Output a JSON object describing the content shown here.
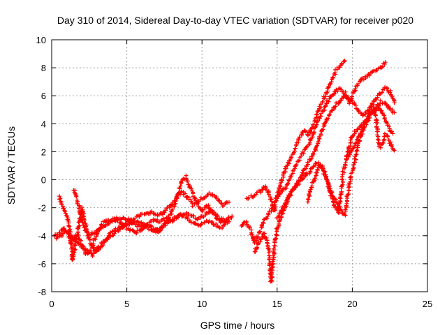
{
  "chart_data": {
    "type": "scatter",
    "title": "Day 310 of 2014, Sidereal Day-to-day VTEC variation (SDTVAR) for receiver p020",
    "xlabel": "GPS time / hours",
    "ylabel": "SDTVAR / TECUs",
    "xlim": [
      0,
      25
    ],
    "ylim": [
      -8,
      10
    ],
    "xticks": [
      "0",
      "5",
      "10",
      "15",
      "20",
      "25"
    ],
    "yticks": [
      "-8",
      "-6",
      "-4",
      "-2",
      "0",
      "2",
      "4",
      "6",
      "8",
      "10"
    ],
    "grid": true,
    "marker": "+",
    "series_color": "#ff0000",
    "series": [
      {
        "x": [
          0.2,
          0.5,
          0.8,
          1.1,
          1.3,
          1.5,
          1.7,
          2.0,
          2.3,
          2.6,
          2.9,
          3.2,
          3.6,
          4.0,
          4.4,
          4.8,
          5.2,
          5.6,
          6.0,
          6.4,
          6.8,
          7.2,
          7.6,
          8.0,
          8.4,
          8.7,
          9.0,
          9.4,
          9.8,
          10.2,
          10.6,
          11.0,
          11.4,
          11.8
        ],
        "y": [
          -4.0,
          -3.8,
          -3.5,
          -3.8,
          -4.5,
          -4.2,
          -3.9,
          -4.6,
          -5.3,
          -5.0,
          -4.2,
          -3.6,
          -3.2,
          -3.0,
          -2.8,
          -2.7,
          -2.9,
          -3.2,
          -3.4,
          -3.1,
          -2.9,
          -3.0,
          -2.8,
          -2.9,
          -2.6,
          -2.5,
          -2.4,
          -2.6,
          -2.8,
          -2.5,
          -2.3,
          -2.6,
          -2.9,
          -3.0
        ]
      },
      {
        "x": [
          0.5,
          0.7,
          1.0,
          1.2,
          1.4,
          1.6,
          1.8,
          2.0,
          2.2,
          2.5,
          2.8,
          3.1,
          3.5,
          3.9,
          4.3,
          4.7,
          5.1,
          5.5,
          5.9,
          6.3,
          6.7,
          7.1,
          7.5,
          7.9,
          8.3,
          8.6,
          8.9,
          9.2,
          9.6,
          10.0,
          10.4,
          10.8,
          11.2,
          11.6,
          12.0
        ],
        "y": [
          -1.2,
          -1.8,
          -2.5,
          -3.5,
          -5.8,
          -4.5,
          -3.2,
          -2.0,
          -3.0,
          -4.0,
          -3.8,
          -3.5,
          -3.0,
          -2.9,
          -2.8,
          -3.2,
          -3.5,
          -3.8,
          -3.6,
          -3.2,
          -3.4,
          -3.8,
          -3.2,
          -2.5,
          -1.5,
          -0.2,
          0.2,
          -0.5,
          -1.5,
          -2.2,
          -1.8,
          -2.5,
          -3.0,
          -2.8,
          -2.6
        ]
      },
      {
        "x": [
          1.5,
          1.7,
          1.9,
          2.1,
          2.4,
          2.7,
          3.0,
          3.4,
          3.8,
          4.2,
          4.6,
          5.0,
          5.4,
          5.8,
          6.2,
          6.6,
          7.0,
          7.4,
          7.8,
          8.2,
          8.6,
          9.0,
          9.4,
          9.8,
          10.2,
          10.6,
          11.0,
          11.4,
          11.8
        ],
        "y": [
          -0.7,
          -1.5,
          -2.4,
          -3.3,
          -4.0,
          -4.8,
          -5.2,
          -4.6,
          -4.0,
          -3.6,
          -3.4,
          -3.0,
          -2.8,
          -2.6,
          -2.4,
          -2.3,
          -2.5,
          -2.4,
          -2.0,
          -1.5,
          -0.8,
          -1.2,
          -1.8,
          -1.5,
          -1.2,
          -1.0,
          -1.4,
          -1.8,
          -1.6
        ]
      },
      {
        "x": [
          0.3,
          0.6,
          0.9,
          1.2,
          1.5,
          1.8,
          2.1,
          2.4,
          2.7,
          3.0,
          3.3,
          3.7,
          4.1,
          4.5,
          4.9,
          5.3,
          5.7,
          6.1,
          6.5,
          6.9,
          7.3,
          7.7,
          8.1,
          8.5,
          8.9,
          9.3,
          9.7,
          10.1,
          10.5,
          10.9,
          11.3,
          11.7
        ],
        "y": [
          -4.2,
          -4.0,
          -3.6,
          -3.9,
          -4.3,
          -4.6,
          -4.9,
          -5.1,
          -5.4,
          -5.0,
          -4.6,
          -4.2,
          -3.9,
          -3.6,
          -3.3,
          -3.1,
          -3.0,
          -3.2,
          -3.5,
          -3.7,
          -3.4,
          -3.1,
          -2.8,
          -2.5,
          -2.7,
          -3.0,
          -3.3,
          -3.1,
          -2.9,
          -3.2,
          -3.4,
          -3.1
        ]
      },
      {
        "x": [
          13.0,
          13.3,
          13.6,
          13.9,
          14.2,
          14.4,
          14.6,
          14.8,
          15.0,
          15.3,
          15.6,
          15.9,
          16.2,
          16.5,
          16.8,
          17.1,
          17.4,
          17.7,
          18.0,
          18.3,
          18.6,
          18.9,
          19.2,
          19.5
        ],
        "y": [
          -1.3,
          -1.2,
          -1.0,
          -0.8,
          -0.5,
          -0.8,
          -1.5,
          -2.2,
          -1.2,
          0.0,
          0.8,
          1.5,
          2.3,
          3.0,
          3.5,
          3.2,
          3.9,
          4.8,
          5.5,
          6.3,
          7.0,
          7.8,
          8.2,
          8.5
        ]
      },
      {
        "x": [
          12.6,
          12.9,
          13.2,
          13.5,
          13.8,
          14.1,
          14.4,
          14.7,
          15.0,
          15.3,
          15.6,
          15.9,
          16.2,
          16.5,
          16.8,
          17.1,
          17.4,
          17.7,
          18.0,
          18.3,
          18.6,
          18.9,
          19.2,
          19.5,
          19.8,
          20.1,
          20.4,
          20.7,
          21.0,
          21.3,
          21.6,
          21.9,
          22.2
        ],
        "y": [
          -3.3,
          -3.0,
          -3.5,
          -4.5,
          -3.8,
          -3.0,
          -2.5,
          -2.0,
          -1.2,
          -0.8,
          -0.5,
          0.2,
          1.0,
          1.5,
          2.1,
          2.5,
          3.3,
          4.2,
          4.8,
          5.5,
          6.0,
          6.3,
          6.5,
          6.2,
          5.5,
          6.3,
          6.9,
          7.2,
          7.4,
          7.7,
          7.9,
          8.0,
          8.4
        ]
      },
      {
        "x": [
          13.5,
          13.8,
          14.1,
          14.4,
          14.6,
          14.8,
          15.0,
          15.3,
          15.6,
          15.9,
          16.2,
          16.5,
          16.8,
          17.1,
          17.4,
          17.7,
          18.0,
          18.3,
          18.6,
          18.9,
          19.2,
          19.5,
          19.8,
          20.1,
          20.4,
          20.7,
          21.0,
          21.3,
          21.6,
          21.9,
          22.2,
          22.5,
          22.8
        ],
        "y": [
          -5.2,
          -4.5,
          -3.8,
          -4.5,
          -7.3,
          -5.0,
          -3.5,
          -2.5,
          -1.8,
          -1.0,
          -0.5,
          0.0,
          0.7,
          1.3,
          1.8,
          2.6,
          3.6,
          4.3,
          4.9,
          5.4,
          5.7,
          6.0,
          5.8,
          5.4,
          5.0,
          4.6,
          4.9,
          5.4,
          5.8,
          6.2,
          6.6,
          6.3,
          5.5
        ]
      },
      {
        "x": [
          15.0,
          15.3,
          15.6,
          15.9,
          16.2,
          16.5,
          16.8,
          17.1,
          17.4,
          17.7,
          18.0,
          18.3,
          18.6,
          18.9,
          19.2,
          19.5,
          19.8,
          20.1,
          20.4,
          20.7,
          21.0,
          21.3,
          21.6,
          21.9,
          22.2,
          22.5,
          22.8
        ],
        "y": [
          -2.8,
          -2.2,
          -1.5,
          -1.0,
          -0.5,
          -0.2,
          0.2,
          0.5,
          0.9,
          1.2,
          0.8,
          0.0,
          -0.8,
          -1.5,
          -2.2,
          -2.5,
          -0.3,
          1.0,
          2.5,
          3.5,
          4.2,
          4.8,
          5.2,
          5.6,
          5.4,
          5.1,
          4.8
        ]
      },
      {
        "x": [
          17.0,
          17.3,
          17.6,
          17.9,
          18.2,
          18.5,
          18.8,
          19.1,
          19.4,
          19.7,
          20.0,
          20.3,
          20.6,
          20.9,
          21.2,
          21.5,
          21.8,
          22.1,
          22.4,
          22.7
        ],
        "y": [
          -1.5,
          -0.5,
          0.5,
          1.1,
          0.5,
          -0.8,
          -1.8,
          -2.4,
          0.5,
          2.0,
          3.2,
          3.6,
          3.8,
          4.2,
          4.6,
          4.9,
          5.2,
          4.5,
          3.8,
          3.3
        ]
      },
      {
        "x": [
          19.6,
          19.8,
          20.0,
          20.2,
          20.4,
          20.6,
          20.8,
          21.0,
          21.2,
          21.4,
          21.6,
          21.8,
          22.0,
          22.2,
          22.4,
          22.6,
          22.8
        ],
        "y": [
          1.5,
          1.8,
          2.2,
          2.6,
          3.0,
          3.5,
          3.9,
          4.4,
          4.9,
          5.4,
          4.2,
          2.3,
          2.6,
          3.2,
          3.0,
          2.5,
          2.1
        ]
      }
    ]
  }
}
